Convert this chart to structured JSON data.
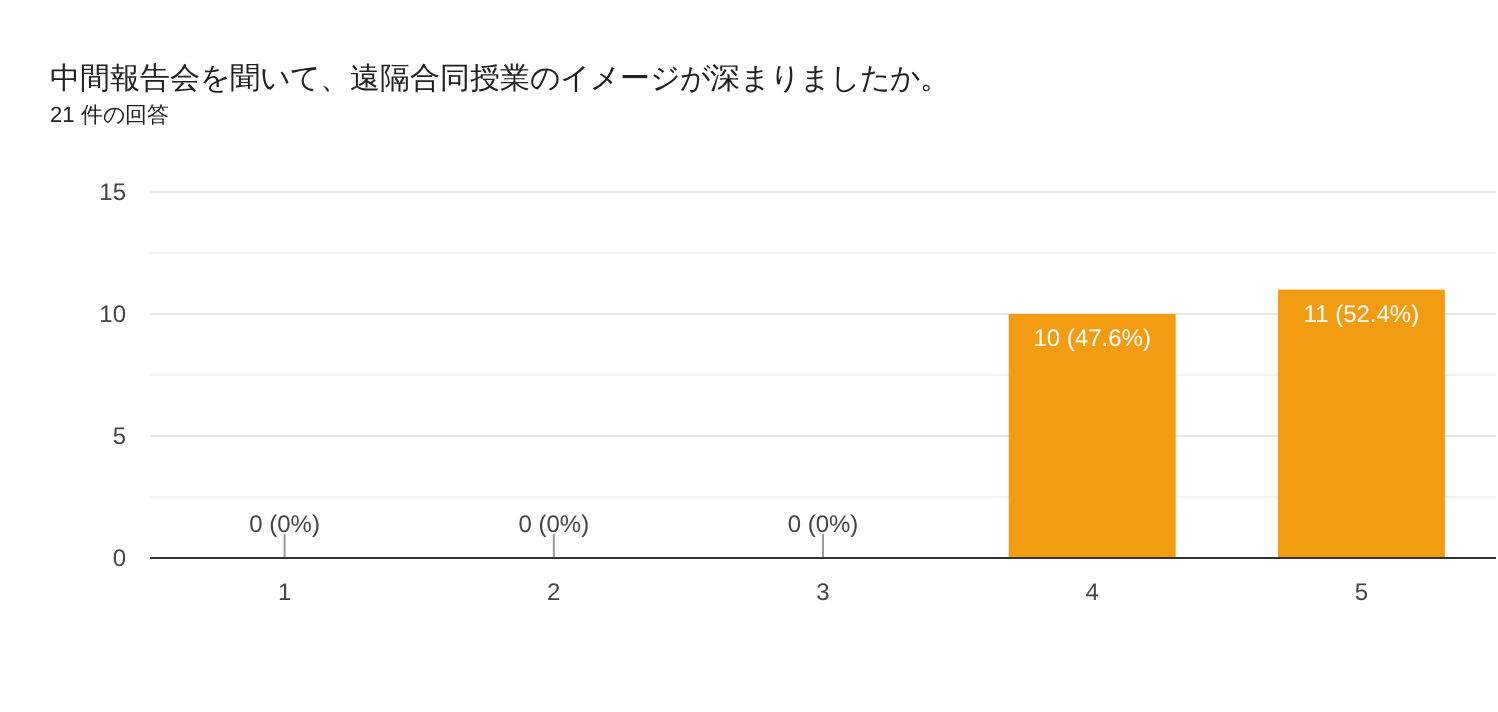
{
  "chart_data": {
    "type": "bar",
    "title": "中間報告会を聞いて、遠隔合同授業のイメージが深まりましたか。",
    "subtitle": "21 件の回答",
    "categories": [
      "1",
      "2",
      "3",
      "4",
      "5"
    ],
    "values": [
      0,
      0,
      0,
      10,
      11
    ],
    "color": "#f39c12",
    "value_labels": [
      "0 (0%)",
      "0 (0%)",
      "0 (0%)",
      "10 (47.6%)",
      "11 (52.4%)"
    ],
    "ylim": [
      0,
      15
    ],
    "yticks": [
      0,
      {
        "value": 2.5,
        "label": null
      },
      5,
      {
        "value": 7.5,
        "label": null
      },
      10,
      {
        "value": 12.5,
        "label": null
      },
      15
    ],
    "grid": "y"
  }
}
